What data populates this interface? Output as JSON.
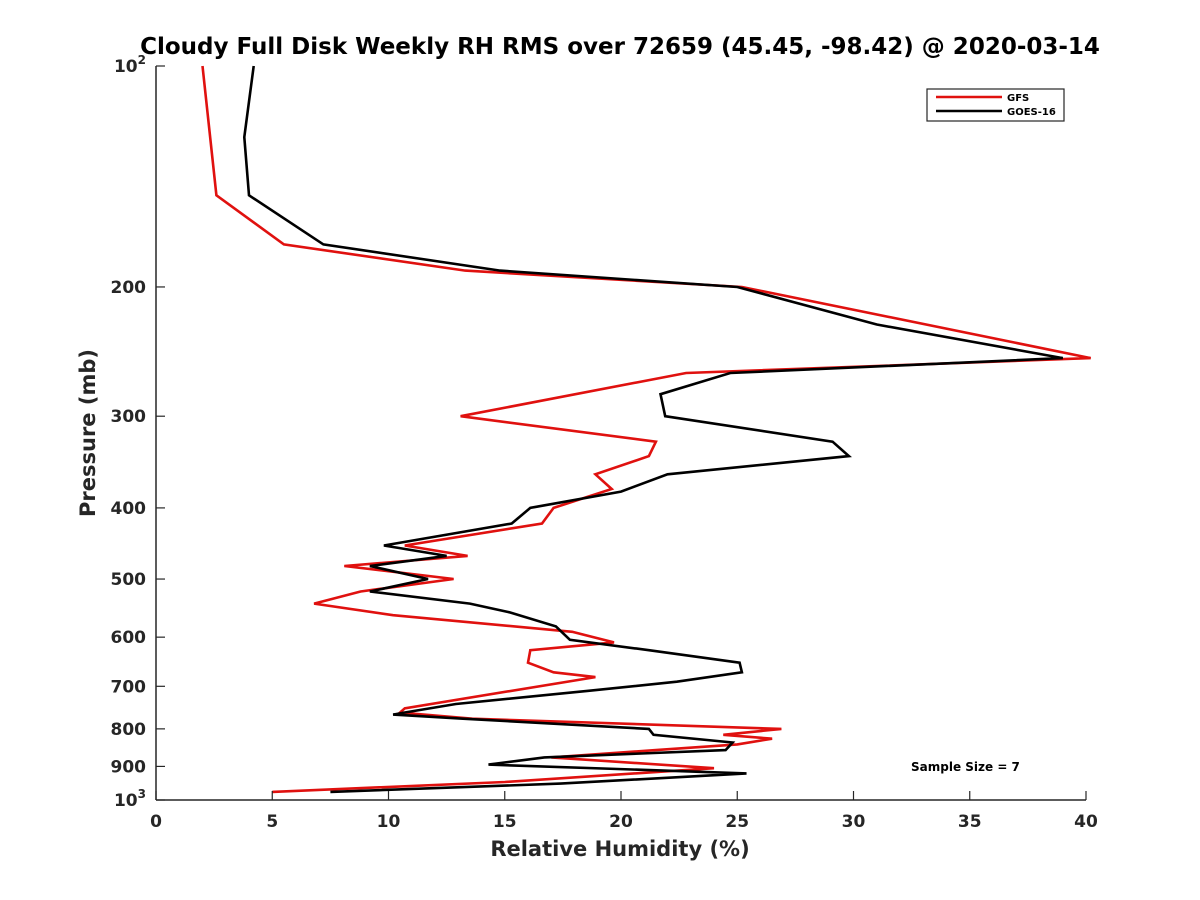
{
  "chart_data": {
    "type": "line",
    "title": "Cloudy Full Disk Weekly RH RMS over 72659 (45.45, -98.42) @ 2020-03-14",
    "xlabel": "Relative Humidity (%)",
    "ylabel": "Pressure (mb)",
    "xlim": [
      0,
      40
    ],
    "ylim": [
      100,
      1000
    ],
    "y_scale": "log",
    "y_reversed": true,
    "x_ticks": [
      "0",
      "5",
      "10",
      "15",
      "20",
      "25",
      "30",
      "35",
      "40"
    ],
    "y_ticks": [
      {
        "value": 100,
        "base": "10",
        "exp": "2"
      },
      {
        "value": 200,
        "label": "200"
      },
      {
        "value": 300,
        "label": "300"
      },
      {
        "value": 400,
        "label": "400"
      },
      {
        "value": 500,
        "label": "500"
      },
      {
        "value": 600,
        "label": "600"
      },
      {
        "value": 700,
        "label": "700"
      },
      {
        "value": 800,
        "label": "800"
      },
      {
        "value": 900,
        "label": "900"
      },
      {
        "value": 1000,
        "base": "10",
        "exp": "3"
      }
    ],
    "grid": false,
    "legend_position": "top-right",
    "annotation": "Sample Size = 7",
    "series": [
      {
        "name": "GFS",
        "color": "#e0110f",
        "points": [
          [
            2.0,
            100
          ],
          [
            2.6,
            150
          ],
          [
            5.5,
            175
          ],
          [
            13.3,
            190
          ],
          [
            25.2,
            200
          ],
          [
            40.2,
            250
          ],
          [
            22.8,
            262
          ],
          [
            13.1,
            300
          ],
          [
            21.5,
            325
          ],
          [
            21.2,
            340
          ],
          [
            18.9,
            360
          ],
          [
            19.6,
            377
          ],
          [
            17.1,
            400
          ],
          [
            16.6,
            420
          ],
          [
            10.7,
            450
          ],
          [
            13.4,
            465
          ],
          [
            8.1,
            480
          ],
          [
            12.8,
            500
          ],
          [
            8.8,
            520
          ],
          [
            6.8,
            540
          ],
          [
            10.2,
            560
          ],
          [
            17.9,
            590
          ],
          [
            19.7,
            610
          ],
          [
            16.1,
            625
          ],
          [
            16.0,
            650
          ],
          [
            17.1,
            670
          ],
          [
            18.9,
            680
          ],
          [
            10.7,
            750
          ],
          [
            10.5,
            760
          ],
          [
            13.6,
            775
          ],
          [
            26.9,
            800
          ],
          [
            24.4,
            815
          ],
          [
            26.5,
            825
          ],
          [
            25.0,
            840
          ],
          [
            21.5,
            855
          ],
          [
            17.0,
            875
          ],
          [
            24.0,
            905
          ],
          [
            15.0,
            945
          ],
          [
            5.0,
            975
          ]
        ]
      },
      {
        "name": "GOES-16",
        "color": "#000000",
        "points": [
          [
            4.2,
            100
          ],
          [
            3.8,
            125
          ],
          [
            4.0,
            150
          ],
          [
            7.2,
            175
          ],
          [
            14.8,
            190
          ],
          [
            25.0,
            200
          ],
          [
            31.0,
            225
          ],
          [
            39.0,
            250
          ],
          [
            24.7,
            262
          ],
          [
            21.7,
            280
          ],
          [
            21.9,
            300
          ],
          [
            29.1,
            325
          ],
          [
            29.8,
            340
          ],
          [
            22.0,
            360
          ],
          [
            20.0,
            380
          ],
          [
            16.1,
            400
          ],
          [
            15.3,
            420
          ],
          [
            9.8,
            450
          ],
          [
            12.5,
            465
          ],
          [
            9.2,
            480
          ],
          [
            11.7,
            500
          ],
          [
            9.2,
            520
          ],
          [
            13.5,
            540
          ],
          [
            15.2,
            555
          ],
          [
            17.2,
            580
          ],
          [
            17.8,
            605
          ],
          [
            21.2,
            625
          ],
          [
            25.1,
            650
          ],
          [
            25.2,
            670
          ],
          [
            22.4,
            690
          ],
          [
            18.6,
            710
          ],
          [
            12.9,
            740
          ],
          [
            10.7,
            760
          ],
          [
            10.2,
            765
          ],
          [
            13.2,
            775
          ],
          [
            21.2,
            800
          ],
          [
            21.4,
            815
          ],
          [
            24.8,
            835
          ],
          [
            24.5,
            855
          ],
          [
            16.7,
            875
          ],
          [
            14.3,
            895
          ],
          [
            25.4,
            920
          ],
          [
            17.4,
            950
          ],
          [
            7.5,
            975
          ]
        ]
      }
    ]
  }
}
